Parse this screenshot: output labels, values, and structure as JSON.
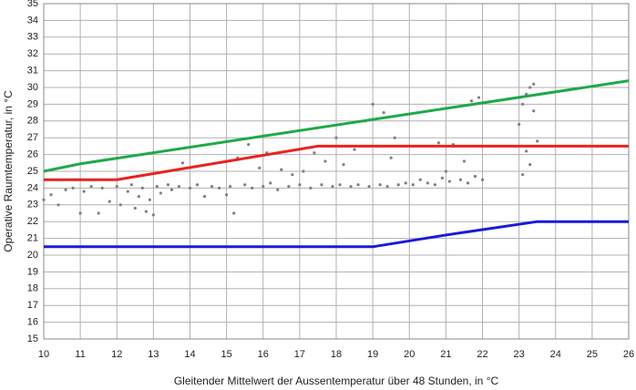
{
  "chart_data": {
    "type": "scatter",
    "xlabel": "Gleitender Mittelwert der Aussentemperatur über 48 Stunden, in °C",
    "ylabel": "Operative Raumtemperatur, in °C",
    "xlim": [
      10,
      26
    ],
    "ylim": [
      15,
      35
    ],
    "xticks": [
      10,
      11,
      12,
      13,
      14,
      15,
      16,
      17,
      18,
      19,
      20,
      21,
      22,
      23,
      24,
      25,
      26
    ],
    "yticks": [
      15,
      16,
      17,
      18,
      19,
      20,
      21,
      22,
      23,
      24,
      25,
      26,
      27,
      28,
      29,
      30,
      31,
      32,
      33,
      34,
      35
    ],
    "grid": true,
    "color": "#7f7f7f",
    "x": [
      10.0,
      10.2,
      10.4,
      10.6,
      10.8,
      11.0,
      11.1,
      11.3,
      11.5,
      11.6,
      11.8,
      12.0,
      12.1,
      12.3,
      12.4,
      12.5,
      12.6,
      12.7,
      12.8,
      12.9,
      13.0,
      13.1,
      13.2,
      13.4,
      13.5,
      13.7,
      13.8,
      14.0,
      14.2,
      14.4,
      14.6,
      14.8,
      15.0,
      15.1,
      15.2,
      15.3,
      15.5,
      15.6,
      15.7,
      15.9,
      16.0,
      16.1,
      16.2,
      16.4,
      16.5,
      16.7,
      16.8,
      17.0,
      17.1,
      17.3,
      17.4,
      17.6,
      17.7,
      17.9,
      18.0,
      18.1,
      18.2,
      18.4,
      18.5,
      18.6,
      18.8,
      18.9,
      19.0,
      19.1,
      19.2,
      19.3,
      19.4,
      19.5,
      19.6,
      19.7,
      19.9,
      20.1,
      20.3,
      20.5,
      20.7,
      20.8,
      20.9,
      21.0,
      21.1,
      21.2,
      21.4,
      21.5,
      21.6,
      21.7,
      21.8,
      21.9,
      22.0,
      23.0,
      23.1,
      23.1,
      23.2,
      23.2,
      23.3,
      23.3,
      23.4,
      23.4,
      23.5
    ],
    "y": [
      23.3,
      23.6,
      23.0,
      23.9,
      24.0,
      22.5,
      23.8,
      24.1,
      22.5,
      24.0,
      23.2,
      24.1,
      23.0,
      23.8,
      24.2,
      22.8,
      23.5,
      24.0,
      22.6,
      23.3,
      22.4,
      24.1,
      23.7,
      24.2,
      23.9,
      24.1,
      25.5,
      24.0,
      24.2,
      23.5,
      24.1,
      24.0,
      23.6,
      24.1,
      22.5,
      25.8,
      24.2,
      26.6,
      24.0,
      25.2,
      24.1,
      26.1,
      24.3,
      23.9,
      25.1,
      24.1,
      24.8,
      24.2,
      25.0,
      24.0,
      26.1,
      24.2,
      25.6,
      24.1,
      27.0,
      24.2,
      25.4,
      24.1,
      26.3,
      24.2,
      28.0,
      24.1,
      29.0,
      26.5,
      24.2,
      28.5,
      24.1,
      25.8,
      27.0,
      24.2,
      24.3,
      24.2,
      24.5,
      24.3,
      24.2,
      26.7,
      24.6,
      25.0,
      24.4,
      26.6,
      24.5,
      25.6,
      24.3,
      29.2,
      24.7,
      29.4,
      24.5,
      27.8,
      24.8,
      29.0,
      26.2,
      29.6,
      25.4,
      30.0,
      28.6,
      30.2,
      26.8
    ],
    "lines": [
      {
        "color": "#20a84a",
        "x": [
          10,
          11,
          26
        ],
        "y": [
          25,
          25.45,
          30.4
        ]
      },
      {
        "color": "#e8231f",
        "x": [
          10,
          12,
          17.5,
          26
        ],
        "y": [
          24.5,
          24.5,
          26.5,
          26.5
        ]
      },
      {
        "color": "#1a1ad8",
        "x": [
          10,
          19,
          21,
          23.5,
          26
        ],
        "y": [
          20.5,
          20.5,
          21.2,
          22,
          22
        ]
      }
    ]
  }
}
